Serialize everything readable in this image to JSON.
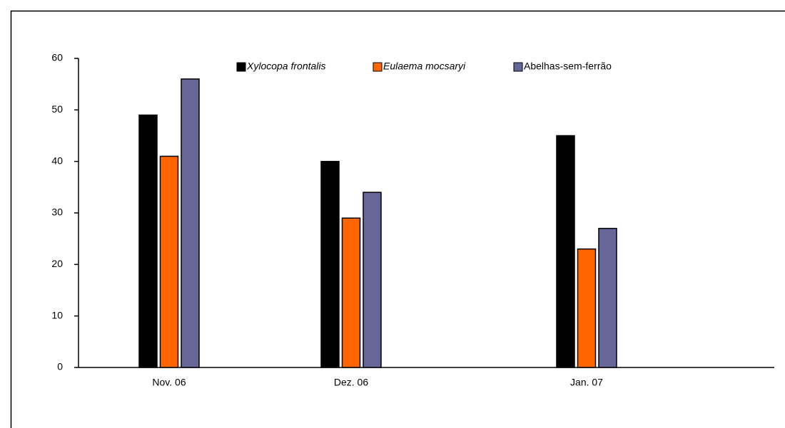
{
  "chart_data": {
    "type": "bar",
    "categories": [
      "Nov. 06",
      "Dez. 06",
      "Jan. 07"
    ],
    "series": [
      {
        "name": "Xylocopa frontalis",
        "color": "#000000",
        "values": [
          49,
          40,
          45
        ]
      },
      {
        "name": "Eulaema mocsaryi",
        "color": "#ff6600",
        "values": [
          41,
          29,
          23
        ]
      },
      {
        "name": "Abelhas-sem-ferrão",
        "color": "#666699",
        "values": [
          56,
          34,
          27
        ]
      }
    ],
    "ylim": [
      0,
      60
    ],
    "yticks": [
      0,
      10,
      20,
      30,
      40,
      50,
      60
    ],
    "grid": false,
    "legend": "top"
  }
}
